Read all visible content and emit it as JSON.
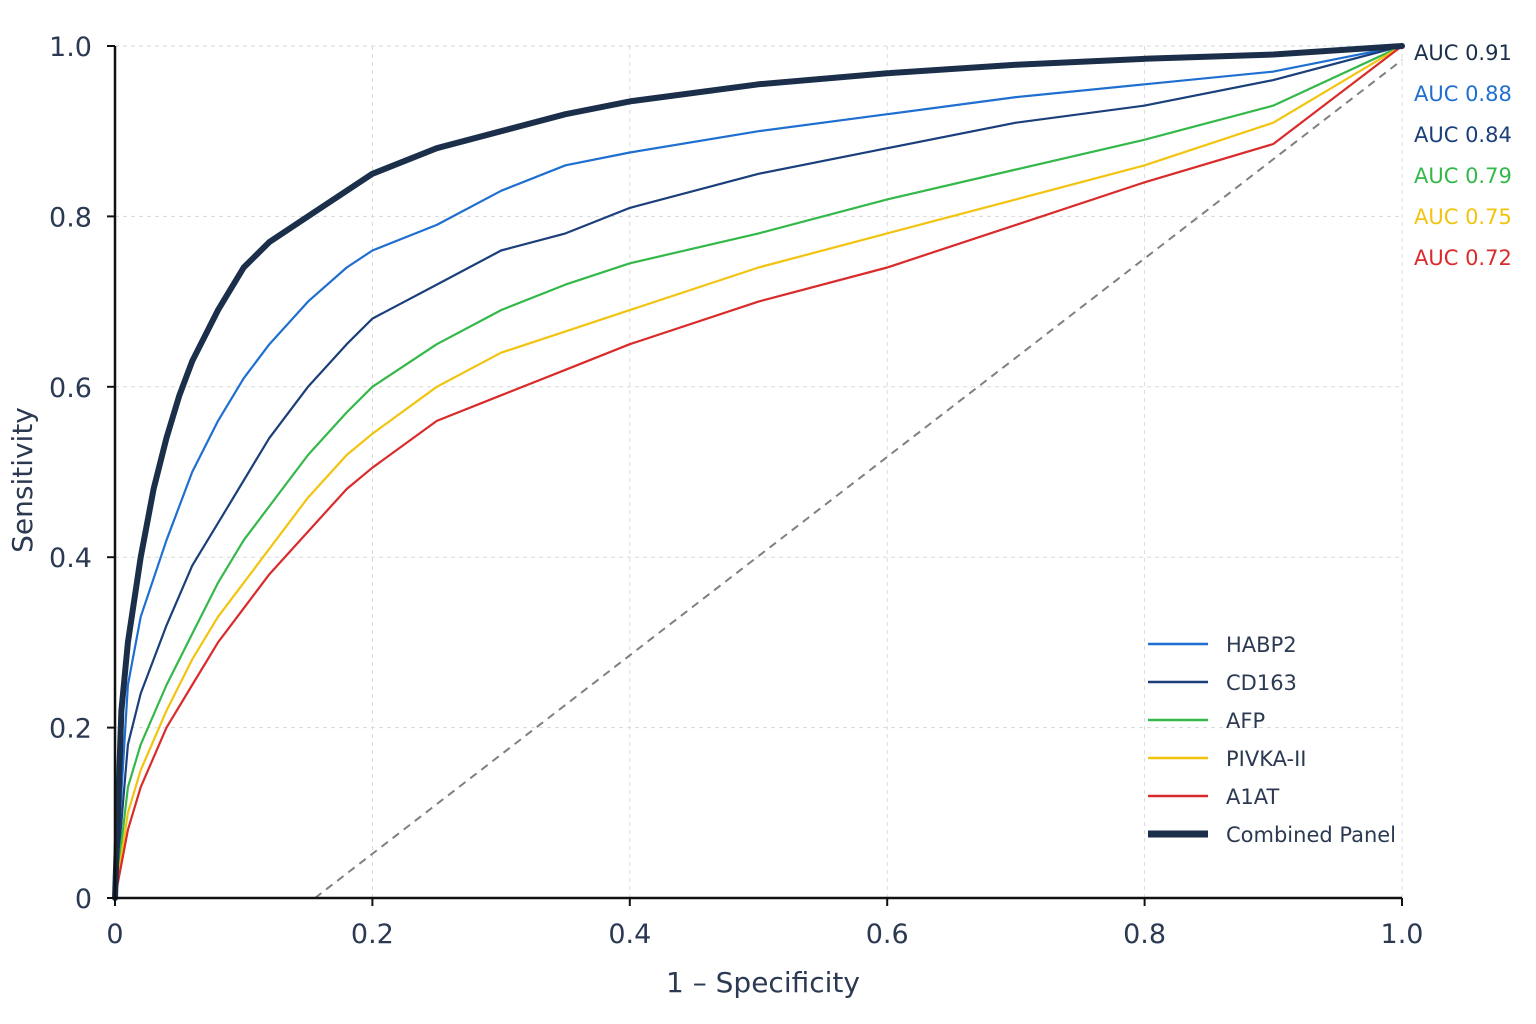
{
  "chart_data": {
    "type": "line",
    "title": "",
    "xlabel": "1 – Specificity",
    "ylabel": "Sensitivity",
    "xlim": [
      0,
      1
    ],
    "ylim": [
      0,
      1
    ],
    "x_ticks": [
      "0",
      "0.2",
      "0.4",
      "0.6",
      "0.8",
      "1.0"
    ],
    "y_ticks": [
      "0",
      "0.2",
      "0.4",
      "0.6",
      "0.8",
      "1.0"
    ],
    "grid": true,
    "legend_position": "bottom-right",
    "reference_line": {
      "style": "dashed",
      "color": "#808080"
    },
    "series": [
      {
        "name": "HABP2",
        "color": "#1f6fd1",
        "auc_label": "AUC 0.88",
        "x": [
          0,
          0.01,
          0.02,
          0.04,
          0.06,
          0.08,
          0.1,
          0.12,
          0.15,
          0.18,
          0.2,
          0.25,
          0.3,
          0.35,
          0.4,
          0.5,
          0.6,
          0.7,
          0.8,
          0.9,
          1.0
        ],
        "y": [
          0,
          0.25,
          0.33,
          0.42,
          0.5,
          0.56,
          0.61,
          0.65,
          0.7,
          0.74,
          0.76,
          0.79,
          0.83,
          0.86,
          0.875,
          0.9,
          0.92,
          0.94,
          0.955,
          0.97,
          1.0
        ]
      },
      {
        "name": "CD163",
        "color": "#1a3f7a",
        "auc_label": "AUC 0.84",
        "x": [
          0,
          0.01,
          0.02,
          0.04,
          0.06,
          0.08,
          0.1,
          0.12,
          0.15,
          0.18,
          0.2,
          0.25,
          0.3,
          0.35,
          0.4,
          0.5,
          0.6,
          0.7,
          0.8,
          0.9,
          1.0
        ],
        "y": [
          0,
          0.18,
          0.24,
          0.32,
          0.39,
          0.44,
          0.49,
          0.54,
          0.6,
          0.65,
          0.68,
          0.72,
          0.76,
          0.78,
          0.81,
          0.85,
          0.88,
          0.91,
          0.93,
          0.96,
          1.0
        ]
      },
      {
        "name": "AFP",
        "color": "#34b84a",
        "auc_label": "AUC 0.79",
        "x": [
          0,
          0.01,
          0.02,
          0.04,
          0.06,
          0.08,
          0.1,
          0.12,
          0.15,
          0.18,
          0.2,
          0.25,
          0.3,
          0.35,
          0.4,
          0.5,
          0.6,
          0.7,
          0.8,
          0.9,
          1.0
        ],
        "y": [
          0,
          0.13,
          0.18,
          0.25,
          0.31,
          0.37,
          0.42,
          0.46,
          0.52,
          0.57,
          0.6,
          0.65,
          0.69,
          0.72,
          0.745,
          0.78,
          0.82,
          0.855,
          0.89,
          0.93,
          1.0
        ]
      },
      {
        "name": "PIVKA-II",
        "color": "#f2c40f",
        "auc_label": "AUC 0.75",
        "x": [
          0,
          0.01,
          0.02,
          0.04,
          0.06,
          0.08,
          0.1,
          0.12,
          0.15,
          0.18,
          0.2,
          0.25,
          0.3,
          0.35,
          0.4,
          0.5,
          0.6,
          0.7,
          0.8,
          0.9,
          1.0
        ],
        "y": [
          0,
          0.1,
          0.15,
          0.22,
          0.28,
          0.33,
          0.37,
          0.41,
          0.47,
          0.52,
          0.545,
          0.6,
          0.64,
          0.665,
          0.69,
          0.74,
          0.78,
          0.82,
          0.86,
          0.91,
          1.0
        ]
      },
      {
        "name": "A1AT",
        "color": "#d92b2b",
        "auc_label": "AUC 0.72",
        "x": [
          0,
          0.01,
          0.02,
          0.04,
          0.06,
          0.08,
          0.1,
          0.12,
          0.15,
          0.18,
          0.2,
          0.25,
          0.3,
          0.35,
          0.4,
          0.5,
          0.6,
          0.7,
          0.8,
          0.9,
          1.0
        ],
        "y": [
          0,
          0.08,
          0.13,
          0.2,
          0.25,
          0.3,
          0.34,
          0.38,
          0.43,
          0.48,
          0.505,
          0.56,
          0.59,
          0.62,
          0.65,
          0.7,
          0.74,
          0.79,
          0.84,
          0.885,
          1.0
        ]
      },
      {
        "name": "Combined Panel",
        "color": "#1b2f4a",
        "auc_label": "AUC 0.91",
        "x": [
          0,
          0.005,
          0.01,
          0.02,
          0.03,
          0.04,
          0.05,
          0.06,
          0.08,
          0.1,
          0.12,
          0.15,
          0.18,
          0.2,
          0.25,
          0.3,
          0.35,
          0.4,
          0.5,
          0.6,
          0.7,
          0.8,
          0.9,
          1.0
        ],
        "y": [
          0,
          0.22,
          0.3,
          0.4,
          0.48,
          0.54,
          0.59,
          0.63,
          0.69,
          0.74,
          0.77,
          0.8,
          0.83,
          0.85,
          0.88,
          0.9,
          0.92,
          0.935,
          0.955,
          0.968,
          0.978,
          0.985,
          0.99,
          1.0
        ]
      }
    ]
  }
}
